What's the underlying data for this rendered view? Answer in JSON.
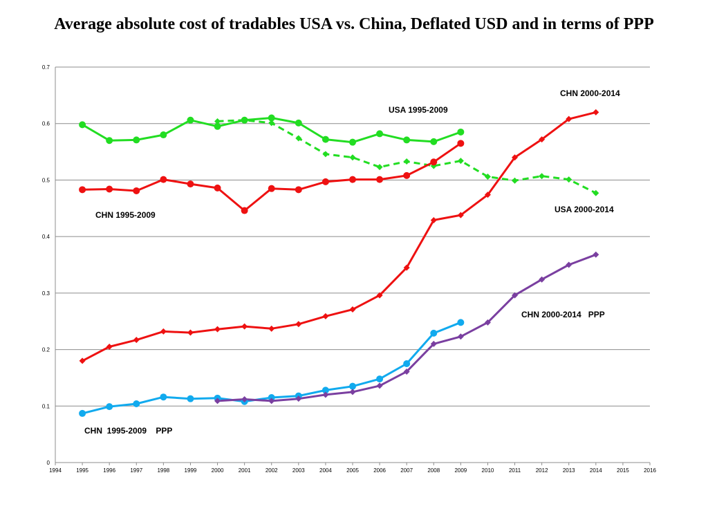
{
  "title": "Average absolute cost of tradables USA vs. China, Deflated USD and in terms of PPP",
  "chart_data": {
    "type": "line",
    "title": "Average absolute cost of tradables USA vs. China, Deflated USD and in terms of PPP",
    "xlabel": "",
    "ylabel": "",
    "xlim": [
      1994,
      2016
    ],
    "ylim": [
      0,
      0.7
    ],
    "x_ticks": [
      "1994",
      "1995",
      "1996",
      "1997",
      "1998",
      "1999",
      "2000",
      "2001",
      "2002",
      "2003",
      "2004",
      "2005",
      "2006",
      "2007",
      "2008",
      "2009",
      "2010",
      "2011",
      "2012",
      "2013",
      "2014",
      "2015",
      "2016"
    ],
    "y_ticks": [
      "0",
      "0.1",
      "0.2",
      "0.3",
      "0.4",
      "0.5",
      "0.6",
      "0.7"
    ],
    "grid": "horizontal",
    "legend": "none",
    "series": [
      {
        "name": "USA 1995-2009",
        "color": "#22dd22",
        "marker": "circle",
        "dashed": false,
        "x": [
          1995,
          1996,
          1997,
          1998,
          1999,
          2000,
          2001,
          2002,
          2003,
          2004,
          2005,
          2006,
          2007,
          2008,
          2009
        ],
        "y": [
          0.598,
          0.57,
          0.571,
          0.58,
          0.606,
          0.595,
          0.606,
          0.61,
          0.601,
          0.572,
          0.567,
          0.582,
          0.571,
          0.568,
          0.585
        ]
      },
      {
        "name": "USA 2000-2014",
        "color": "#22dd22",
        "marker": "diamond",
        "dashed": true,
        "x": [
          2000,
          2001,
          2002,
          2003,
          2004,
          2005,
          2006,
          2007,
          2008,
          2009,
          2010,
          2011,
          2012,
          2013,
          2014
        ],
        "y": [
          0.604,
          0.606,
          0.601,
          0.574,
          0.546,
          0.54,
          0.523,
          0.533,
          0.525,
          0.534,
          0.506,
          0.499,
          0.507,
          0.501,
          0.477
        ]
      },
      {
        "name": "CHN 1995-2009",
        "color": "#ee1111",
        "marker": "circle",
        "dashed": false,
        "x": [
          1995,
          1996,
          1997,
          1998,
          1999,
          2000,
          2001,
          2002,
          2003,
          2004,
          2005,
          2006,
          2007,
          2008,
          2009
        ],
        "y": [
          0.483,
          0.484,
          0.481,
          0.501,
          0.493,
          0.486,
          0.446,
          0.485,
          0.483,
          0.497,
          0.501,
          0.501,
          0.508,
          0.532,
          0.565
        ]
      },
      {
        "name": "CHN 2000-2014",
        "color": "#ee1111",
        "marker": "diamond",
        "dashed": false,
        "x": [
          1995,
          1996,
          1997,
          1998,
          1999,
          2000,
          2001,
          2002,
          2003,
          2004,
          2005,
          2006,
          2007,
          2008,
          2009,
          2010,
          2011,
          2012,
          2013,
          2014
        ],
        "y": [
          0.18,
          0.205,
          0.217,
          0.232,
          0.23,
          0.236,
          0.241,
          0.237,
          0.245,
          0.259,
          0.271,
          0.296,
          0.345,
          0.429,
          0.438,
          0.474,
          0.54,
          0.572,
          0.608,
          0.62
        ]
      },
      {
        "name": "CHN 1995-2009 PPP",
        "color": "#11aaee",
        "marker": "circle",
        "dashed": false,
        "x": [
          1995,
          1996,
          1997,
          1998,
          1999,
          2000,
          2001,
          2002,
          2003,
          2004,
          2005,
          2006,
          2007,
          2008,
          2009
        ],
        "y": [
          0.087,
          0.099,
          0.104,
          0.116,
          0.113,
          0.114,
          0.108,
          0.115,
          0.118,
          0.128,
          0.135,
          0.148,
          0.175,
          0.229,
          0.248
        ]
      },
      {
        "name": "CHN 2000-2014 PPP",
        "color": "#7a3fa0",
        "marker": "diamond",
        "dashed": false,
        "x": [
          2000,
          2001,
          2002,
          2003,
          2004,
          2005,
          2006,
          2007,
          2008,
          2009,
          2010,
          2011,
          2012,
          2013,
          2014
        ],
        "y": [
          0.109,
          0.112,
          0.109,
          0.113,
          0.12,
          0.125,
          0.136,
          0.161,
          0.21,
          0.223,
          0.248,
          0.296,
          0.324,
          0.35,
          0.368
        ]
      }
    ],
    "annotations": [
      "CHN 2000-2014",
      "USA 1995-2009",
      "USA 2000-2014",
      "CHN 1995-2009",
      "CHN 2000-2014   PPP",
      "CHN  1995-2009    PPP"
    ]
  }
}
